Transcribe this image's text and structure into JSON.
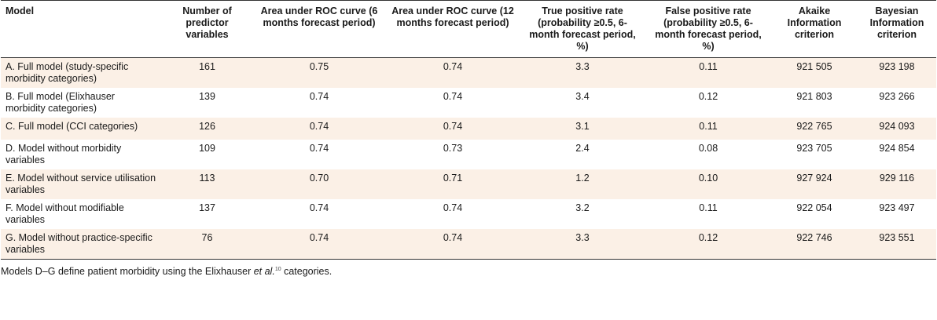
{
  "table": {
    "headers": [
      {
        "key": "model",
        "label": "Model"
      },
      {
        "key": "predictors",
        "label": "Number of predictor variables"
      },
      {
        "key": "auc6",
        "label": "Area under ROC curve (6 months forecast period)"
      },
      {
        "key": "auc12",
        "label": "Area under ROC curve (12 months forecast period)"
      },
      {
        "key": "tpr",
        "label": "True positive rate (probability ≥0.5, 6-month forecast period, %)"
      },
      {
        "key": "fpr",
        "label": "False positive rate (probability ≥0.5, 6-month forecast period, %)"
      },
      {
        "key": "aic",
        "label": "Akaike Information criterion"
      },
      {
        "key": "bic",
        "label": "Bayesian Information criterion"
      }
    ],
    "rows": [
      {
        "model": "A. Full model (study-specific morbidity categories)",
        "predictors": "161",
        "auc6": "0.75",
        "auc12": "0.74",
        "tpr": "3.3",
        "fpr": "0.11",
        "aic": "921 505",
        "bic": "923 198"
      },
      {
        "model": "B. Full model (Elixhauser morbidity categories)",
        "predictors": "139",
        "auc6": "0.74",
        "auc12": "0.74",
        "tpr": "3.4",
        "fpr": "0.12",
        "aic": "921 803",
        "bic": "923 266"
      },
      {
        "model": "C. Full model (CCI categories)",
        "predictors": "126",
        "auc6": "0.74",
        "auc12": "0.74",
        "tpr": "3.1",
        "fpr": "0.11",
        "aic": "922 765",
        "bic": "924 093"
      },
      {
        "model": "D. Model without morbidity variables",
        "predictors": "109",
        "auc6": "0.74",
        "auc12": "0.73",
        "tpr": "2.4",
        "fpr": "0.08",
        "aic": "923 705",
        "bic": "924 854"
      },
      {
        "model": "E. Model without service utilisation variables",
        "predictors": "113",
        "auc6": "0.70",
        "auc12": "0.71",
        "tpr": "1.2",
        "fpr": "0.10",
        "aic": "927 924",
        "bic": "929 116"
      },
      {
        "model": "F. Model without modifiable variables",
        "predictors": "137",
        "auc6": "0.74",
        "auc12": "0.74",
        "tpr": "3.2",
        "fpr": "0.11",
        "aic": "922 054",
        "bic": "923 497"
      },
      {
        "model": "G. Model without practice-specific variables",
        "predictors": "76",
        "auc6": "0.74",
        "auc12": "0.74",
        "tpr": "3.3",
        "fpr": "0.12",
        "aic": "922 746",
        "bic": "923 551"
      }
    ]
  },
  "footnote": {
    "text_before": "Models D–G define patient morbidity using the Elixhauser ",
    "italic": "et al.",
    "superscript": "10",
    "text_after": " categories."
  }
}
